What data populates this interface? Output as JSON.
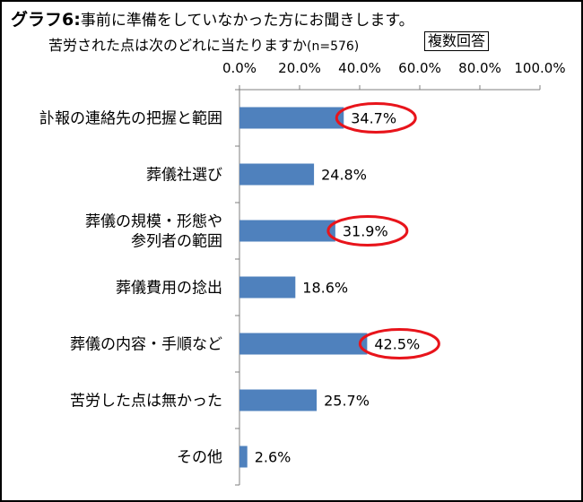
{
  "chart_data": {
    "type": "bar",
    "orientation": "horizontal",
    "title_prefix": "グラフ6:",
    "title": "事前に準備をしていなかった方にお聞きします。",
    "subtitle": "苦労された点は次のどれに当たりますか",
    "n_note": "(n=576)",
    "badge": "複数回答",
    "categories": [
      [
        "訃報の連絡先の把握と範囲"
      ],
      [
        "葬儀社選び"
      ],
      [
        "葬儀の規模・形態や",
        "参列者の範囲"
      ],
      [
        "葬儀費用の捻出"
      ],
      [
        "葬儀の内容・手順など"
      ],
      [
        "苦労した点は無かった"
      ],
      [
        "その他"
      ]
    ],
    "values": [
      34.7,
      24.8,
      31.9,
      18.6,
      42.5,
      25.7,
      2.6
    ],
    "value_labels": [
      "34.7%",
      "24.8%",
      "31.9%",
      "18.6%",
      "42.5%",
      "25.7%",
      "2.6%"
    ],
    "highlighted": [
      true,
      false,
      true,
      false,
      true,
      false,
      false
    ],
    "xlim": [
      0,
      100
    ],
    "ticks": [
      0,
      20,
      40,
      60,
      80,
      100
    ],
    "tick_labels": [
      "0.0%",
      "20.0%",
      "40.0%",
      "60.0%",
      "80.0%",
      "100.0%"
    ],
    "axis_position": "top",
    "grid": false,
    "legend": "none",
    "bar_color": "#4F81BD",
    "highlight_color": "#E8141B"
  }
}
